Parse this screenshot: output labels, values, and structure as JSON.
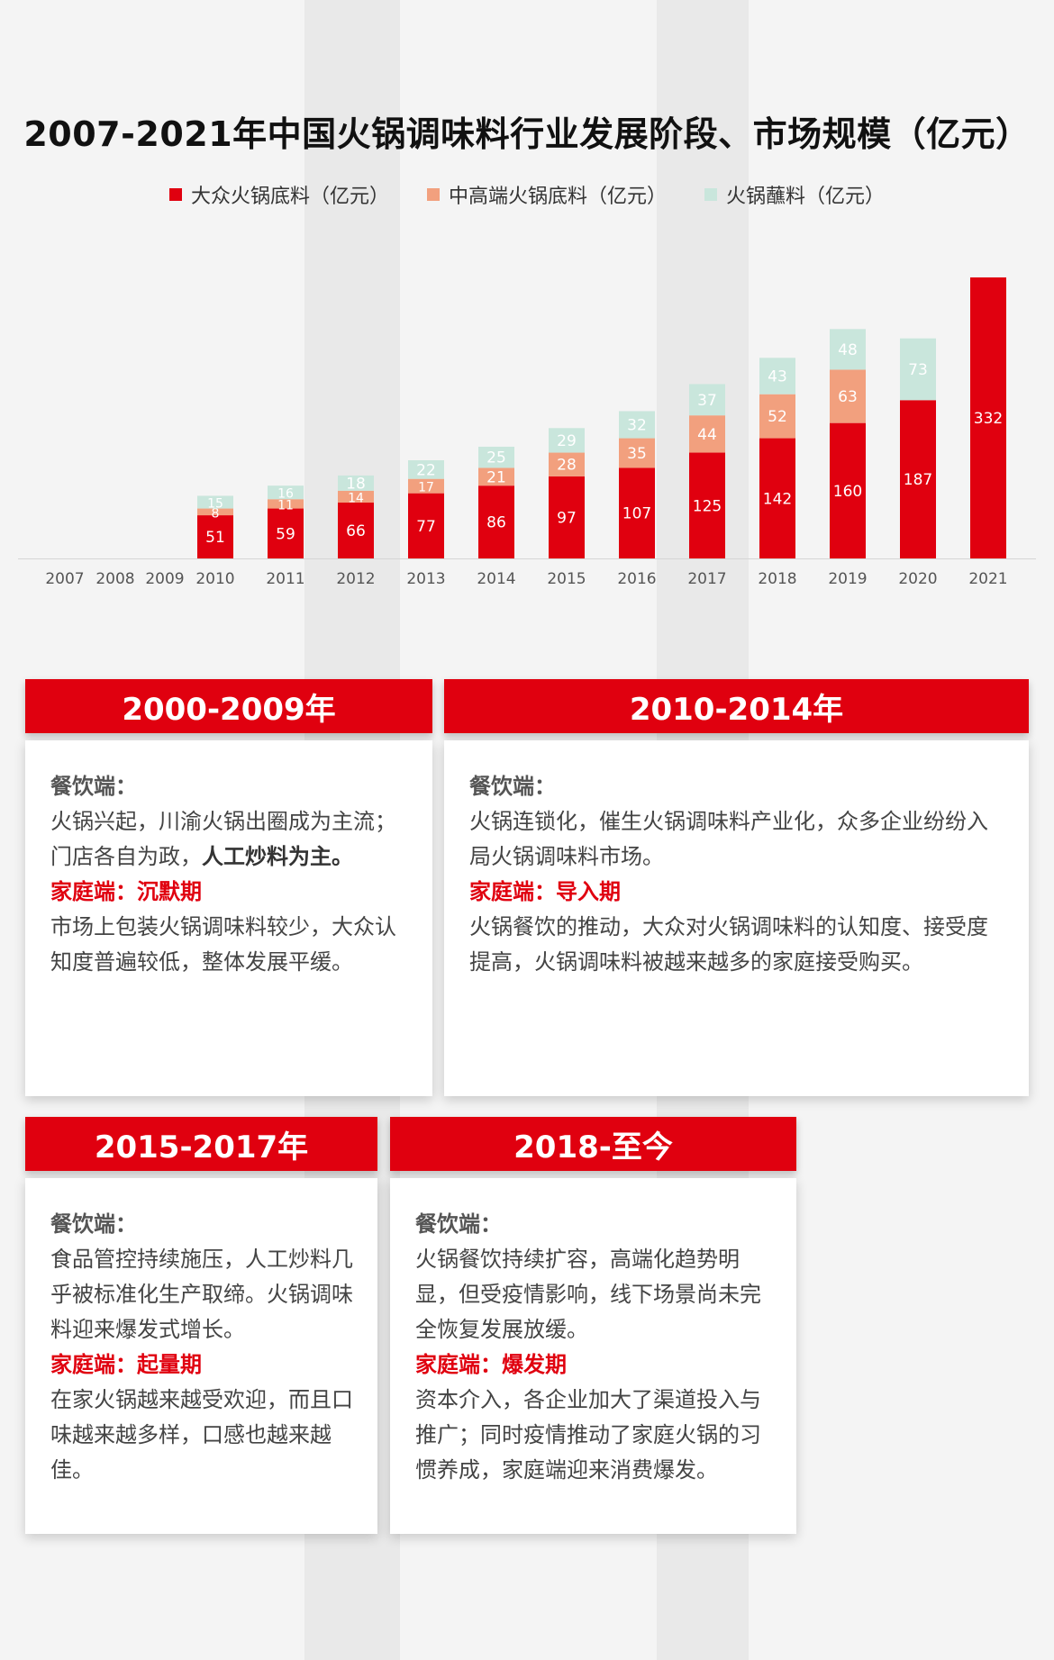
{
  "chart_data": {
    "type": "bar",
    "stacked": true,
    "title": "2007-2021年中国火锅调味料行业发展阶段、市场规模（亿元）",
    "categories": [
      "2007",
      "2008",
      "2009",
      "2010",
      "2011",
      "2012",
      "2013",
      "2014",
      "2015",
      "2016",
      "2017",
      "2018",
      "2019",
      "2020",
      "2021"
    ],
    "series": [
      {
        "name": "大众火锅底料（亿元）",
        "color": "#e0000f",
        "values": [
          null,
          null,
          null,
          51,
          59,
          66,
          77,
          86,
          97,
          107,
          125,
          142,
          160,
          187,
          332
        ]
      },
      {
        "name": "中高端火锅底料（亿元）",
        "color": "#f2a07e",
        "values": [
          null,
          null,
          null,
          8,
          11,
          14,
          17,
          21,
          28,
          35,
          44,
          52,
          63,
          null,
          null
        ]
      },
      {
        "name": "火锅蘸料（亿元）",
        "color": "#c9e6dc",
        "values": [
          null,
          null,
          null,
          15,
          16,
          18,
          22,
          25,
          29,
          32,
          37,
          43,
          48,
          73,
          null
        ]
      }
    ],
    "ylim": [
      0,
      350
    ],
    "grid": false,
    "legend_position": "top"
  },
  "cards": [
    {
      "period": "2000-2009年",
      "catering_label": "餐饮端：",
      "catering_text": "火锅兴起，川渝火锅出圈成为主流；门店各自为政，",
      "catering_strong": "人工炒料为主。",
      "home_label": "家庭端：沉默期",
      "home_text": "市场上包装火锅调味料较少，大众认知度普遍较低，整体发展平缓。"
    },
    {
      "period": "2010-2014年",
      "catering_label": "餐饮端：",
      "catering_text": "火锅连锁化，催生火锅调味料产业化，众多企业纷纷入局火锅调味料市场。",
      "catering_strong": "",
      "home_label": "家庭端：导入期",
      "home_text": "火锅餐饮的推动，大众对火锅调味料的认知度、接受度提高，火锅调味料被越来越多的家庭接受购买。"
    },
    {
      "period": "2015-2017年",
      "catering_label": "餐饮端：",
      "catering_text": "食品管控持续施压，人工炒料几乎被标准化生产取缔。火锅调味料迎来爆发式增长。",
      "catering_strong": "",
      "home_label": "家庭端：起量期",
      "home_text": "在家火锅越来越受欢迎，而且口味越来越多样，口感也越来越佳。"
    },
    {
      "period": "2018-至今",
      "catering_label": "餐饮端：",
      "catering_text": "火锅餐饮持续扩容，高端化趋势明显，但受疫情影响，线下场景尚未完全恢复发展放缓。",
      "catering_strong": "",
      "home_label": "家庭端：爆发期",
      "home_text": "资本介入，各企业加大了渠道投入与推广；同时疫情推动了家庭火锅的习惯养成，家庭端迎来消费爆发。"
    }
  ]
}
